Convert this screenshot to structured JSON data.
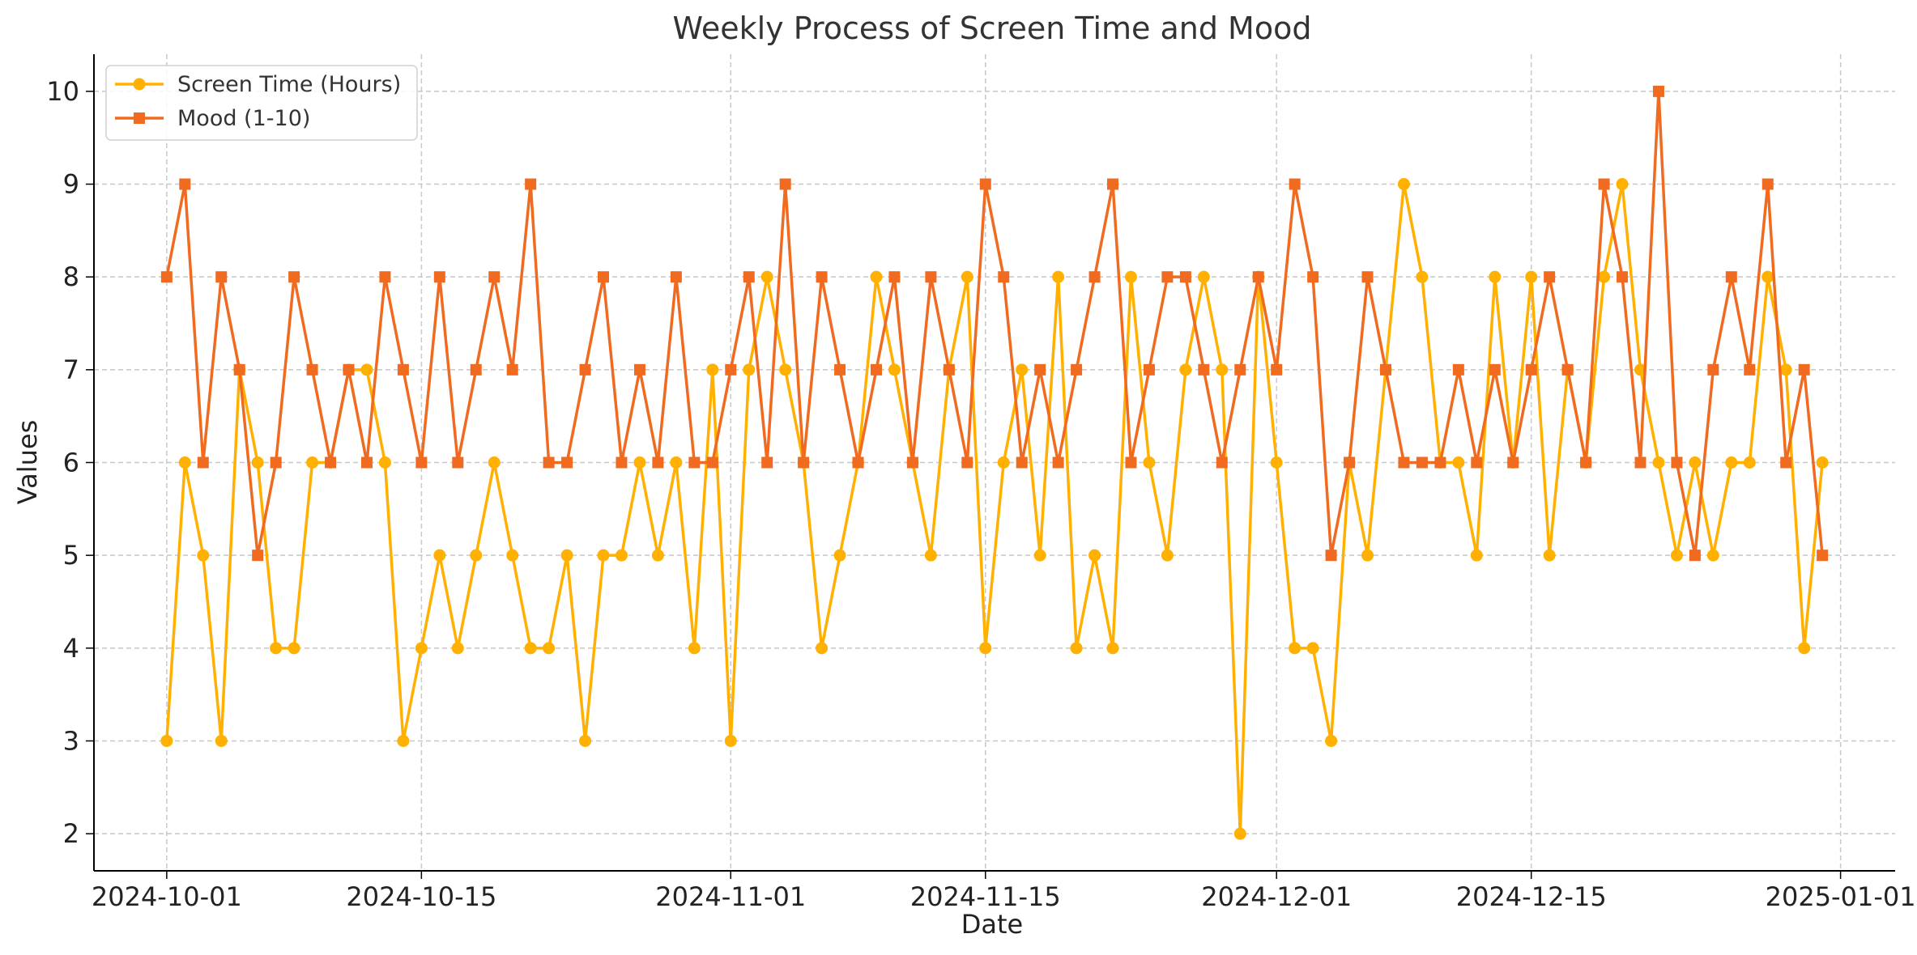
{
  "chart_data": {
    "type": "line",
    "title": "Weekly Process of Screen Time and Mood",
    "xlabel": "Date",
    "ylabel": "Values",
    "x_start": "2024-10-01",
    "x_end": "2024-12-31",
    "xlim": [
      "2023-09-27",
      "2025-01-04"
    ],
    "ylim": [
      1.6,
      10.4
    ],
    "x_ticks": [
      "2024-10-01",
      "2024-10-15",
      "2024-11-01",
      "2024-11-15",
      "2024-12-01",
      "2024-12-15",
      "2025-01-01"
    ],
    "y_ticks": [
      2,
      3,
      4,
      5,
      6,
      7,
      8,
      9,
      10
    ],
    "grid": true,
    "legend_position": "top-left",
    "series": [
      {
        "name": "Screen Time (Hours)",
        "color": "#FFB000",
        "marker": "circle",
        "values": [
          3,
          6,
          5,
          3,
          7,
          6,
          4,
          4,
          6,
          6,
          7,
          7,
          6,
          3,
          4,
          5,
          4,
          5,
          6,
          5,
          4,
          4,
          5,
          3,
          5,
          5,
          6,
          5,
          6,
          4,
          7,
          3,
          7,
          8,
          7,
          6,
          4,
          5,
          6,
          8,
          7,
          6,
          5,
          7,
          8,
          4,
          6,
          7,
          5,
          8,
          4,
          5,
          4,
          8,
          6,
          5,
          7,
          8,
          7,
          2,
          8,
          6,
          4,
          4,
          3,
          6,
          5,
          7,
          9,
          8,
          6,
          6,
          5,
          8,
          6,
          8,
          5,
          7,
          6,
          8,
          9,
          7,
          6,
          5,
          6,
          5,
          6,
          6,
          8,
          7,
          4,
          6
        ]
      },
      {
        "name": "Mood (1-10)",
        "color": "#F06A1F",
        "marker": "square",
        "values": [
          8,
          9,
          6,
          8,
          7,
          5,
          6,
          8,
          7,
          6,
          7,
          6,
          8,
          7,
          6,
          8,
          6,
          7,
          8,
          7,
          9,
          6,
          6,
          7,
          8,
          6,
          7,
          6,
          8,
          6,
          6,
          7,
          8,
          6,
          9,
          6,
          8,
          7,
          6,
          7,
          8,
          6,
          8,
          7,
          6,
          9,
          8,
          6,
          7,
          6,
          7,
          8,
          9,
          6,
          7,
          8,
          8,
          7,
          6,
          7,
          8,
          7,
          9,
          8,
          5,
          6,
          8,
          7,
          6,
          6,
          6,
          7,
          6,
          7,
          6,
          7,
          8,
          7,
          6,
          9,
          8,
          6,
          10,
          6,
          5,
          7,
          8,
          7,
          9,
          6,
          7,
          5
        ]
      }
    ]
  }
}
